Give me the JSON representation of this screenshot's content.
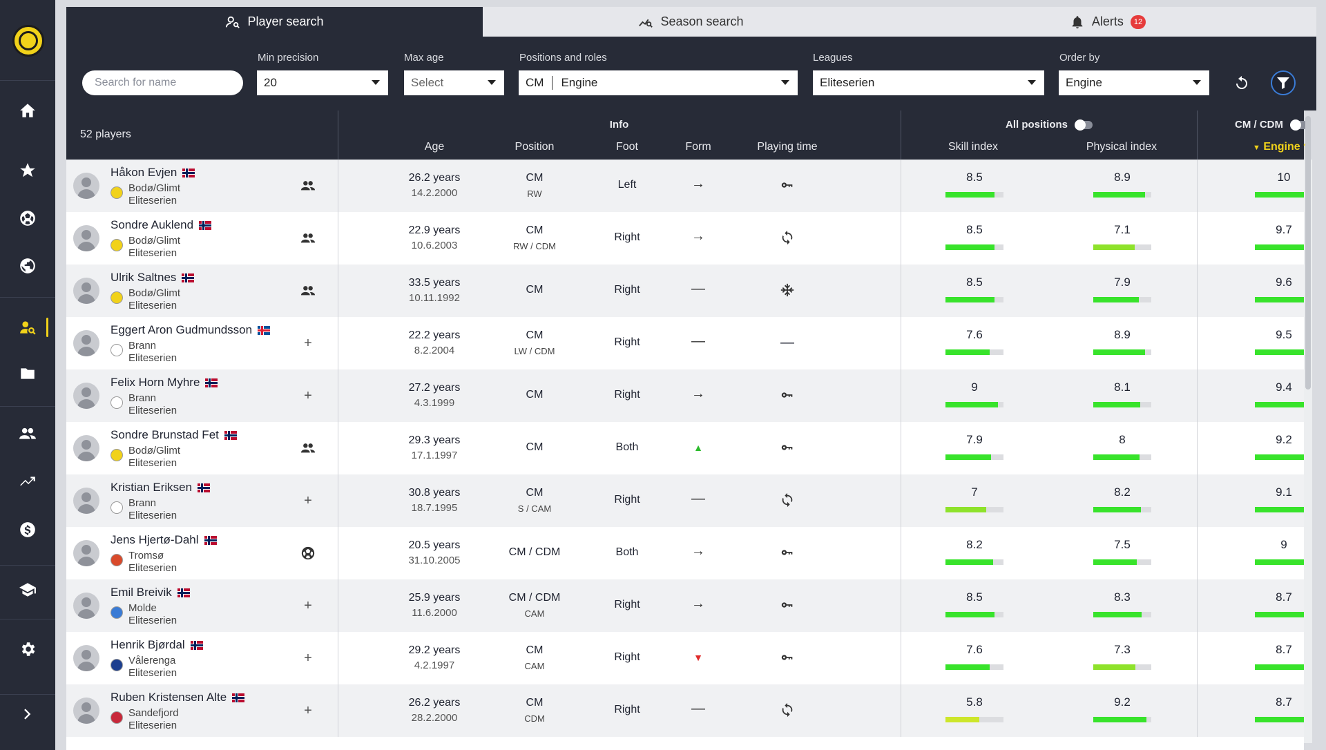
{
  "tabs": [
    {
      "label": "Player search",
      "icon": "user-search-icon"
    },
    {
      "label": "Season search",
      "icon": "chart-search-icon"
    },
    {
      "label": "Alerts",
      "icon": "bell-icon",
      "badge": "12"
    }
  ],
  "filters": {
    "search_placeholder": "Search for name",
    "min_precision": {
      "label": "Min precision",
      "value": "20"
    },
    "max_age": {
      "label": "Max age",
      "value": "Select"
    },
    "positions": {
      "label": "Positions and roles",
      "position": "CM",
      "role": "Engine"
    },
    "leagues": {
      "label": "Leagues",
      "value": "Eliteserien"
    },
    "order_by": {
      "label": "Order by",
      "value": "Engine"
    }
  },
  "table": {
    "count": "52 players",
    "groups": {
      "info": "Info",
      "all_positions": "All positions",
      "role_group": "CM / CDM"
    },
    "columns": {
      "age": "Age",
      "position": "Position",
      "foot": "Foot",
      "form": "Form",
      "playing_time": "Playing time",
      "skill": "Skill index",
      "physical": "Physical index",
      "engine": "Engine"
    }
  },
  "players": [
    {
      "name": "Håkon Evjen",
      "flag": "no",
      "club": "Bodø/Glimt",
      "league": "Eliteserien",
      "club_color": "#f1d21a",
      "status": "group",
      "age": "26.2 years",
      "dob": "14.2.2000",
      "pos": "CM",
      "pos2": "RW",
      "foot": "Left",
      "form": "→",
      "time": "key",
      "skill": "8.5",
      "skill_v": 8.5,
      "phys": "8.9",
      "phys_v": 8.9,
      "engine": "10",
      "engine_v": 10
    },
    {
      "name": "Sondre Auklend",
      "flag": "no",
      "club": "Bodø/Glimt",
      "league": "Eliteserien",
      "club_color": "#f1d21a",
      "status": "group",
      "age": "22.9 years",
      "dob": "10.6.2003",
      "pos": "CM",
      "pos2": "RW / CDM",
      "foot": "Right",
      "form": "→",
      "time": "rotate",
      "skill": "8.5",
      "skill_v": 8.5,
      "phys": "7.1",
      "phys_v": 7.1,
      "engine": "9.7",
      "engine_v": 9.7
    },
    {
      "name": "Ulrik Saltnes",
      "flag": "no",
      "club": "Bodø/Glimt",
      "league": "Eliteserien",
      "club_color": "#f1d21a",
      "status": "group",
      "age": "33.5 years",
      "dob": "10.11.1992",
      "pos": "CM",
      "pos2": "",
      "foot": "Right",
      "form": "—",
      "time": "snow",
      "skill": "8.5",
      "skill_v": 8.5,
      "phys": "7.9",
      "phys_v": 7.9,
      "engine": "9.6",
      "engine_v": 9.6
    },
    {
      "name": "Eggert Aron Gudmundsson",
      "flag": "is",
      "club": "Brann",
      "league": "Eliteserien",
      "club_color": "#ffffff",
      "status": "plus",
      "age": "22.2 years",
      "dob": "8.2.2004",
      "pos": "CM",
      "pos2": "LW / CDM",
      "foot": "Right",
      "form": "—",
      "time": "dash",
      "skill": "7.6",
      "skill_v": 7.6,
      "phys": "8.9",
      "phys_v": 8.9,
      "engine": "9.5",
      "engine_v": 9.5
    },
    {
      "name": "Felix Horn Myhre",
      "flag": "no",
      "club": "Brann",
      "league": "Eliteserien",
      "club_color": "#ffffff",
      "status": "plus",
      "age": "27.2 years",
      "dob": "4.3.1999",
      "pos": "CM",
      "pos2": "",
      "foot": "Right",
      "form": "→",
      "time": "key",
      "skill": "9",
      "skill_v": 9,
      "phys": "8.1",
      "phys_v": 8.1,
      "engine": "9.4",
      "engine_v": 9.4
    },
    {
      "name": "Sondre Brunstad Fet",
      "flag": "no",
      "club": "Bodø/Glimt",
      "league": "Eliteserien",
      "club_color": "#f1d21a",
      "status": "group",
      "age": "29.3 years",
      "dob": "17.1.1997",
      "pos": "CM",
      "pos2": "",
      "foot": "Both",
      "form": "▲",
      "time": "key",
      "skill": "7.9",
      "skill_v": 7.9,
      "phys": "8",
      "phys_v": 8,
      "engine": "9.2",
      "engine_v": 9.2
    },
    {
      "name": "Kristian Eriksen",
      "flag": "no",
      "club": "Brann",
      "league": "Eliteserien",
      "club_color": "#ffffff",
      "status": "plus",
      "age": "30.8 years",
      "dob": "18.7.1995",
      "pos": "CM",
      "pos2": "S / CAM",
      "foot": "Right",
      "form": "—",
      "time": "rotate",
      "skill": "7",
      "skill_v": 7,
      "phys": "8.2",
      "phys_v": 8.2,
      "engine": "9.1",
      "engine_v": 9.1
    },
    {
      "name": "Jens Hjertø-Dahl",
      "flag": "no",
      "club": "Tromsø",
      "league": "Eliteserien",
      "club_color": "#d94a2b",
      "status": "ball",
      "age": "20.5 years",
      "dob": "31.10.2005",
      "pos": "CM / CDM",
      "pos2": "",
      "foot": "Both",
      "form": "→",
      "time": "key",
      "skill": "8.2",
      "skill_v": 8.2,
      "phys": "7.5",
      "phys_v": 7.5,
      "engine": "9",
      "engine_v": 9
    },
    {
      "name": "Emil Breivik",
      "flag": "no",
      "club": "Molde",
      "league": "Eliteserien",
      "club_color": "#3a7bd5",
      "status": "plus",
      "age": "25.9 years",
      "dob": "11.6.2000",
      "pos": "CM / CDM",
      "pos2": "CAM",
      "foot": "Right",
      "form": "→",
      "time": "key",
      "skill": "8.5",
      "skill_v": 8.5,
      "phys": "8.3",
      "phys_v": 8.3,
      "engine": "8.7",
      "engine_v": 8.7
    },
    {
      "name": "Henrik Bjørdal",
      "flag": "no",
      "club": "Vålerenga",
      "league": "Eliteserien",
      "club_color": "#1d3f8f",
      "status": "plus",
      "age": "29.2 years",
      "dob": "4.2.1997",
      "pos": "CM",
      "pos2": "CAM",
      "foot": "Right",
      "form": "▼",
      "time": "key",
      "skill": "7.6",
      "skill_v": 7.6,
      "phys": "7.3",
      "phys_v": 7.3,
      "engine": "8.7",
      "engine_v": 8.7
    },
    {
      "name": "Ruben Kristensen Alte",
      "flag": "no",
      "club": "Sandefjord",
      "league": "Eliteserien",
      "club_color": "#c8283a",
      "status": "plus",
      "age": "26.2 years",
      "dob": "28.2.2000",
      "pos": "CM",
      "pos2": "CDM",
      "foot": "Right",
      "form": "—",
      "time": "rotate",
      "skill": "5.8",
      "skill_v": 5.8,
      "phys": "9.2",
      "phys_v": 9.2,
      "engine": "8.7",
      "engine_v": 8.7
    }
  ]
}
